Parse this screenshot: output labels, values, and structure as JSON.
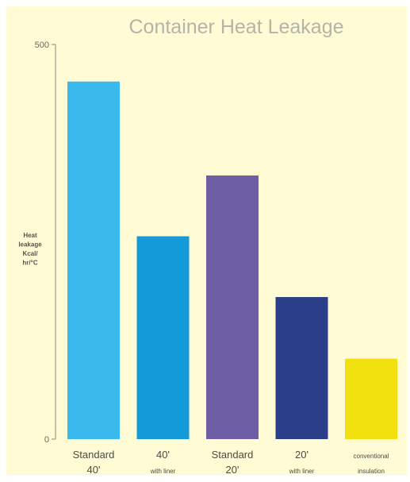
{
  "colors": {
    "background": "#fefbd5",
    "axis": "#8a8a7a",
    "title": "#b4b4a8"
  },
  "chart_data": {
    "type": "bar",
    "title": "Container Heat Leakage",
    "ylabel": [
      "Heat",
      "leakage",
      "Kcal/",
      "hr/°C"
    ],
    "yticks": [
      {
        "value": 0,
        "label": "0"
      },
      {
        "value": 500,
        "label": "500"
      }
    ],
    "ylim": [
      0,
      500
    ],
    "categories": [
      {
        "main": "Standard",
        "sub": "40'"
      },
      {
        "main": "40'",
        "sub": "with liner"
      },
      {
        "main": "Standard",
        "sub": "20'"
      },
      {
        "main": "20'",
        "sub": "with liner"
      },
      {
        "main": "conventional",
        "sub": "insulation"
      }
    ],
    "values": [
      453,
      257,
      334,
      180,
      102
    ],
    "bar_colors": [
      "#39b9ec",
      "#149ad8",
      "#6d5ea6",
      "#2b3f88",
      "#f2e10f"
    ],
    "grid": false,
    "legend": "none"
  }
}
